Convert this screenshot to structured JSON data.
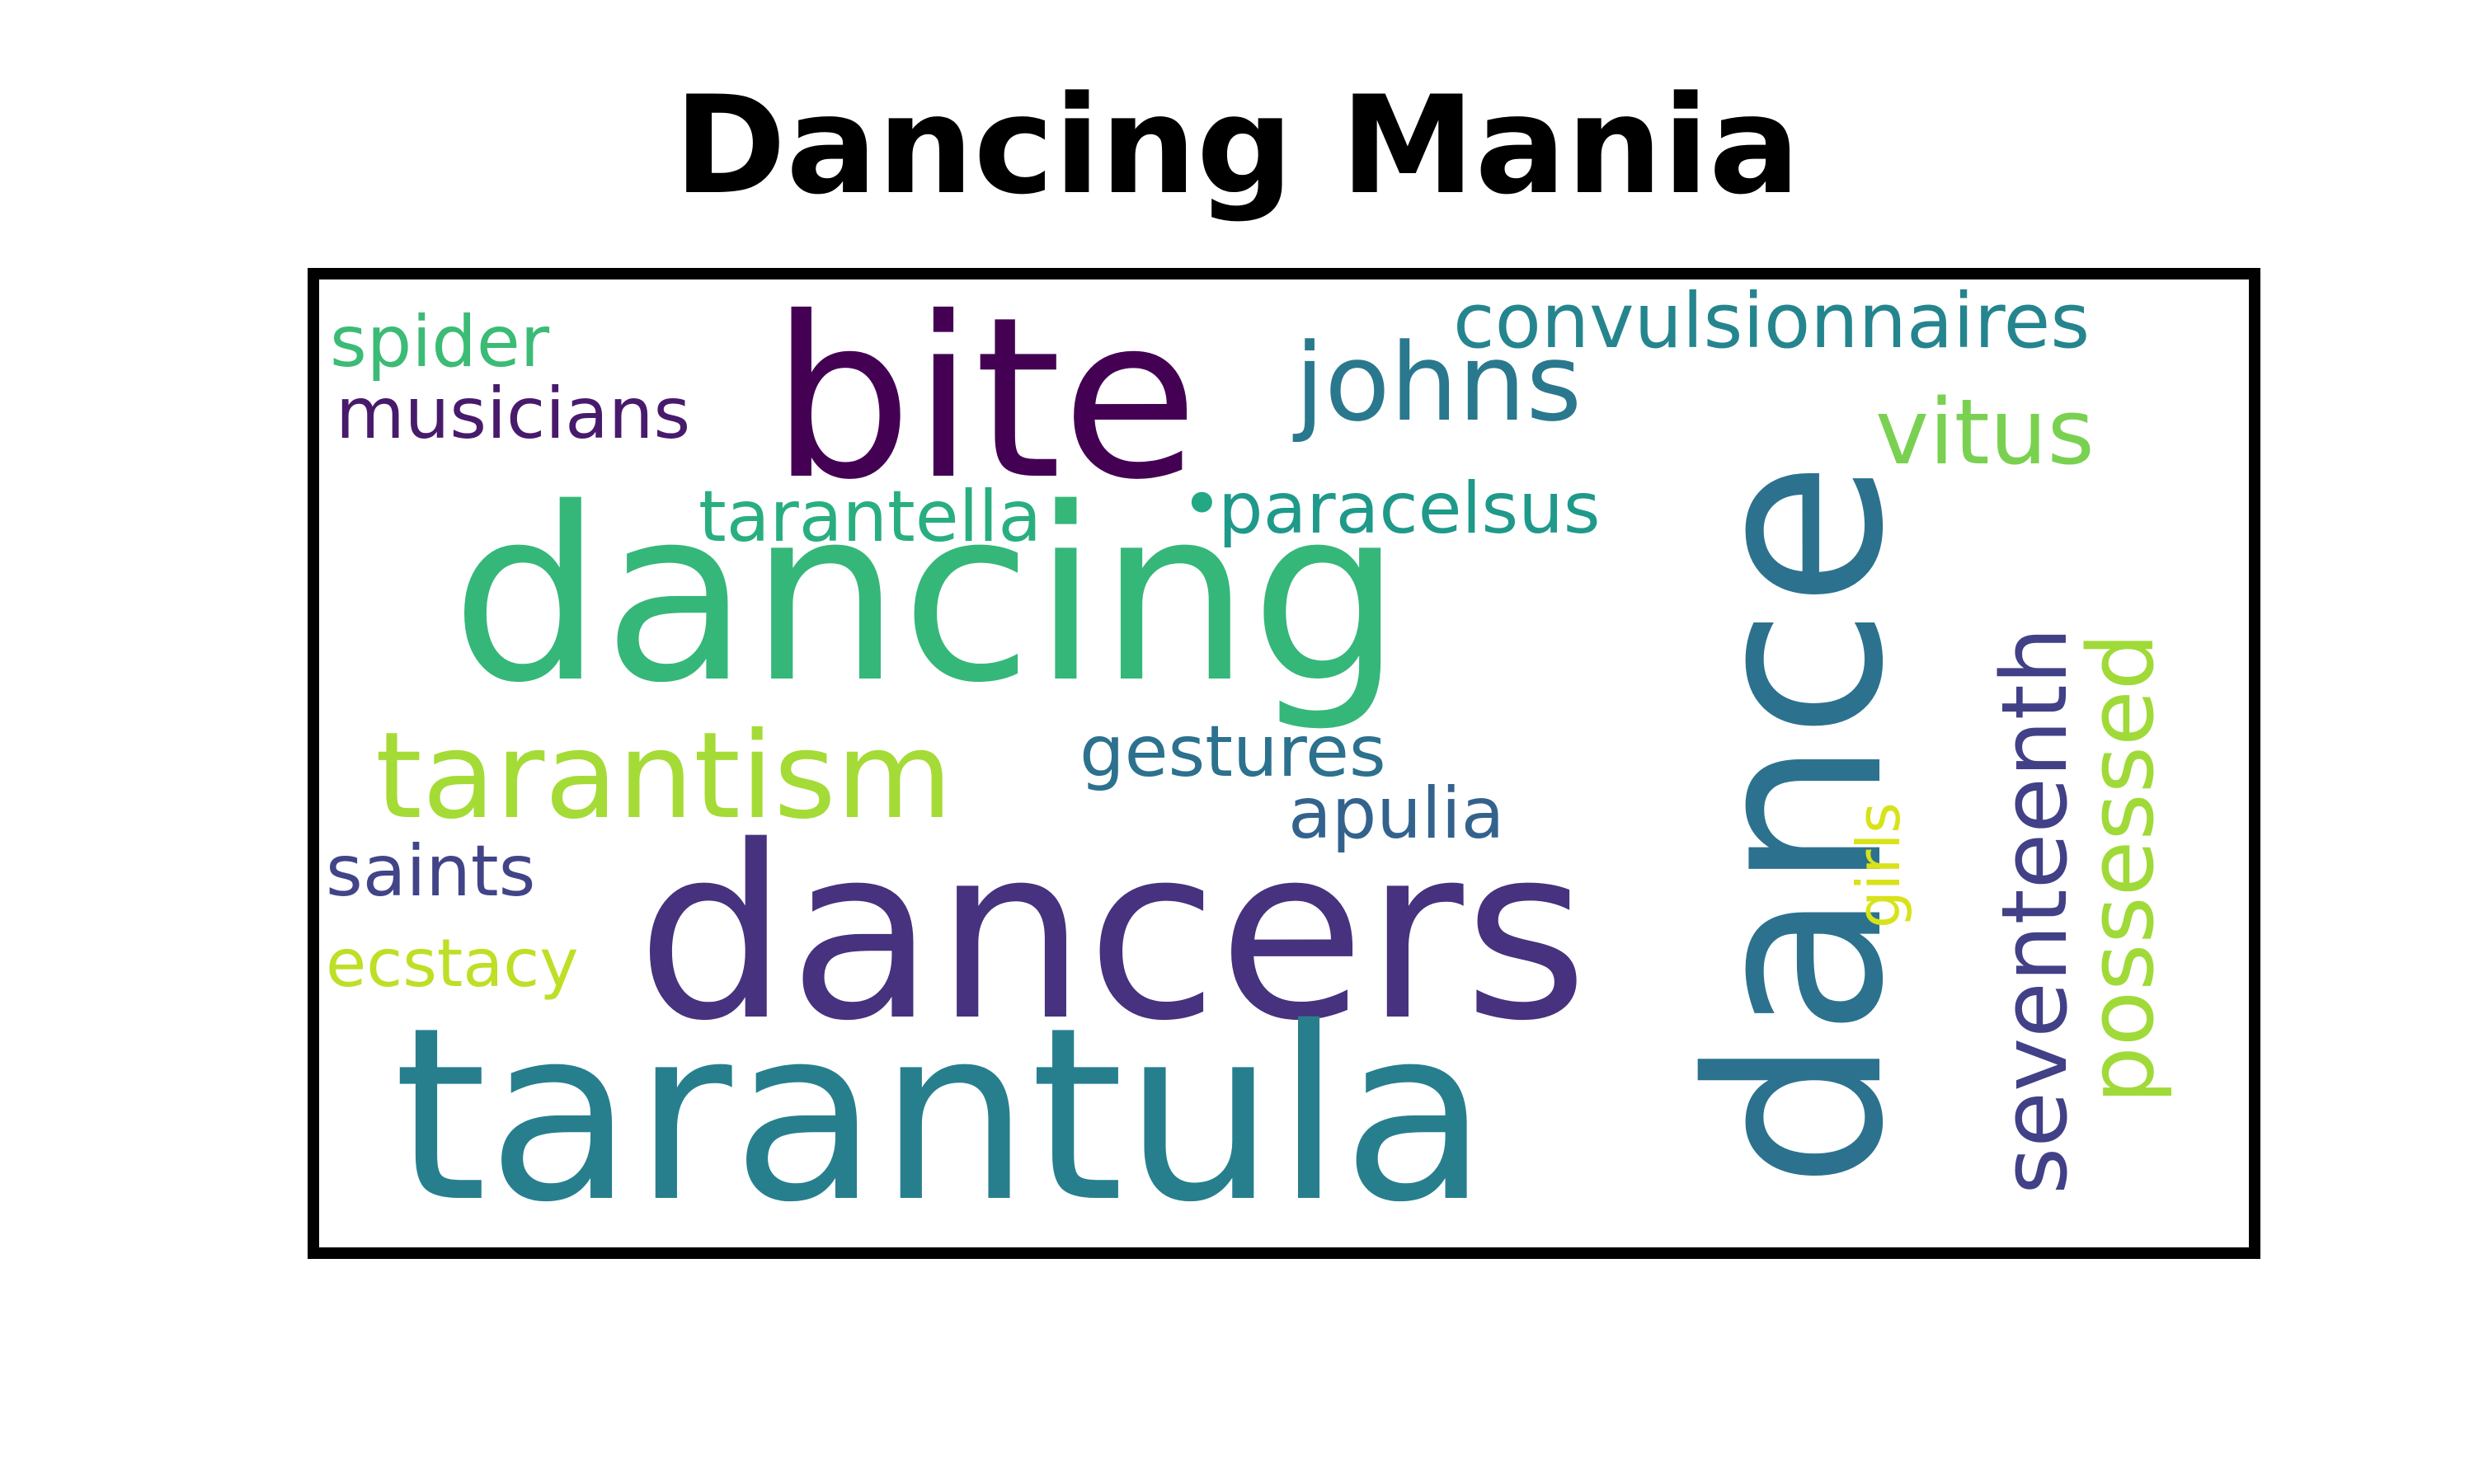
{
  "title": "Dancing Mania",
  "words": {
    "dancing": {
      "text": "dancing",
      "color": "#35b779"
    },
    "dance": {
      "text": "dance",
      "color": "#2c728e"
    },
    "dancers": {
      "text": "dancers",
      "color": "#46327e"
    },
    "tarantula": {
      "text": "tarantula",
      "color": "#277f8e"
    },
    "bite": {
      "text": "bite",
      "color": "#440154"
    },
    "tarantism": {
      "text": "tarantism",
      "color": "#a5db36"
    },
    "johns": {
      "text": "johns",
      "color": "#2a788e"
    },
    "convulsionnaires": {
      "text": "convulsionnaires",
      "color": "#25858e"
    },
    "vitus": {
      "text": "vitus",
      "color": "#7ad151"
    },
    "spider": {
      "text": "spider",
      "color": "#3bbb75"
    },
    "musicians": {
      "text": "musicians",
      "color": "#481a6c"
    },
    "tarantella": {
      "text": "tarantella",
      "color": "#29af7f"
    },
    "paracelsus": {
      "text": "paracelsus",
      "color": "#1f998a"
    },
    "gestures": {
      "text": "gestures",
      "color": "#2c718e"
    },
    "apulia": {
      "text": "apulia",
      "color": "#33638d"
    },
    "saints": {
      "text": "saints",
      "color": "#414487"
    },
    "ecstacy": {
      "text": "ecstacy",
      "color": "#bddf26"
    },
    "seventeenth": {
      "text": "seventeenth",
      "color": "#424086"
    },
    "possessed": {
      "text": "possessed",
      "color": "#a0da39"
    },
    "girls": {
      "text": "girls",
      "color": "#d8e219"
    },
    "dot": {
      "text": "•",
      "color": "#22a884"
    }
  }
}
